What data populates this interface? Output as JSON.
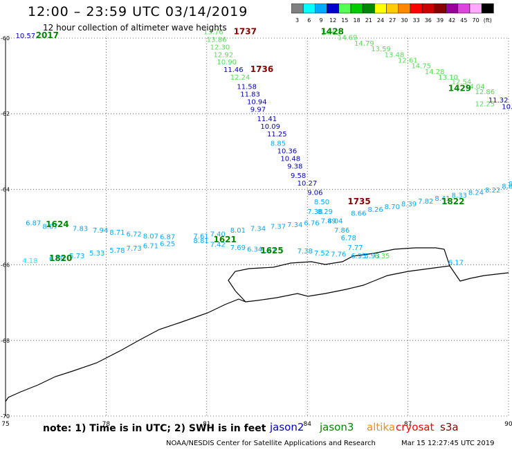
{
  "header": {
    "title": "12:00 – 23:59 UTC 03/14/2019",
    "subtitle": "12 hour collection of altimeter wave heights"
  },
  "color_scale": {
    "unit": "(ft)",
    "bins": [
      {
        "label": "3",
        "color": "#808080"
      },
      {
        "label": "6",
        "color": "#00ffff"
      },
      {
        "label": "9",
        "color": "#00aaff"
      },
      {
        "label": "12",
        "color": "#0000cc"
      },
      {
        "label": "15",
        "color": "#55ff55"
      },
      {
        "label": "18",
        "color": "#00cc00"
      },
      {
        "label": "21",
        "color": "#008800"
      },
      {
        "label": "24",
        "color": "#ffff00"
      },
      {
        "label": "27",
        "color": "#ffcc00"
      },
      {
        "label": "30",
        "color": "#ff8800"
      },
      {
        "label": "33",
        "color": "#ff0000"
      },
      {
        "label": "36",
        "color": "#cc0000"
      },
      {
        "label": "39",
        "color": "#880000"
      },
      {
        "label": "42",
        "color": "#990099"
      },
      {
        "label": "45",
        "color": "#dd44dd"
      },
      {
        "label": "70",
        "color": "#ffaaff"
      },
      {
        "label": "",
        "color": "#000000"
      }
    ]
  },
  "axes": {
    "lon_ticks": [
      "75",
      "78",
      "81",
      "84",
      "87",
      "90"
    ],
    "lat_ticks": [
      "-60",
      "-62",
      "-64",
      "-66",
      "-68",
      "-70"
    ]
  },
  "track_labels": [
    {
      "text": "2017",
      "color": "#008800",
      "lon": 75.9,
      "lat": -60.0
    },
    {
      "text": "1737",
      "color": "#880000",
      "lon": 81.8,
      "lat": -59.9
    },
    {
      "text": "1736",
      "color": "#880000",
      "lon": 82.3,
      "lat": -60.9
    },
    {
      "text": "1428",
      "color": "#008800",
      "lon": 84.4,
      "lat": -59.9
    },
    {
      "text": "1429",
      "color": "#008800",
      "lon": 88.2,
      "lat": -61.4
    },
    {
      "text": "1735",
      "color": "#880000",
      "lon": 85.2,
      "lat": -64.4
    },
    {
      "text": "1822",
      "color": "#008800",
      "lon": 88.0,
      "lat": -64.4
    },
    {
      "text": "1624",
      "color": "#008800",
      "lon": 76.2,
      "lat": -65.0
    },
    {
      "text": "1621",
      "color": "#008800",
      "lon": 81.2,
      "lat": -65.4
    },
    {
      "text": "1625",
      "color": "#008800",
      "lon": 82.6,
      "lat": -65.7
    },
    {
      "text": "1820",
      "color": "#008800",
      "lon": 76.3,
      "lat": -65.9
    }
  ],
  "swh_values": [
    {
      "v": "10.57",
      "c": "#0000cc",
      "lon": 75.3,
      "lat": -60.0
    },
    {
      "v": "13.76",
      "c": "#55dd55",
      "lon": 80.9,
      "lat": -59.9
    },
    {
      "v": "13.86",
      "c": "#55dd55",
      "lon": 81.0,
      "lat": -60.1
    },
    {
      "v": "12.30",
      "c": "#55dd55",
      "lon": 81.1,
      "lat": -60.3
    },
    {
      "v": "12.92",
      "c": "#55dd55",
      "lon": 81.2,
      "lat": -60.5
    },
    {
      "v": "10.90",
      "c": "#55dd55",
      "lon": 81.3,
      "lat": -60.7
    },
    {
      "v": "11.46",
      "c": "#0000cc",
      "lon": 81.5,
      "lat": -60.9
    },
    {
      "v": "12.24",
      "c": "#55dd55",
      "lon": 81.7,
      "lat": -61.1
    },
    {
      "v": "11.58",
      "c": "#0000cc",
      "lon": 81.9,
      "lat": -61.35
    },
    {
      "v": "11.83",
      "c": "#0000cc",
      "lon": 82.0,
      "lat": -61.55
    },
    {
      "v": "10.94",
      "c": "#0000cc",
      "lon": 82.2,
      "lat": -61.75
    },
    {
      "v": "9.97",
      "c": "#0000cc",
      "lon": 82.3,
      "lat": -61.95
    },
    {
      "v": "11.41",
      "c": "#0000cc",
      "lon": 82.5,
      "lat": -62.2
    },
    {
      "v": "10.09",
      "c": "#0000cc",
      "lon": 82.6,
      "lat": -62.4
    },
    {
      "v": "11.25",
      "c": "#0000cc",
      "lon": 82.8,
      "lat": -62.6
    },
    {
      "v": "8.85",
      "c": "#00aaff",
      "lon": 82.9,
      "lat": -62.85
    },
    {
      "v": "10.36",
      "c": "#0000cc",
      "lon": 83.1,
      "lat": -63.05
    },
    {
      "v": "10.48",
      "c": "#0000cc",
      "lon": 83.2,
      "lat": -63.25
    },
    {
      "v": "9.38",
      "c": "#0000cc",
      "lon": 83.4,
      "lat": -63.45
    },
    {
      "v": "9.58",
      "c": "#0000cc",
      "lon": 83.5,
      "lat": -63.7
    },
    {
      "v": "10.27",
      "c": "#0000cc",
      "lon": 83.7,
      "lat": -63.9
    },
    {
      "v": "9.06",
      "c": "#0000cc",
      "lon": 84.0,
      "lat": -64.15
    },
    {
      "v": "8.50",
      "c": "#00aaff",
      "lon": 84.2,
      "lat": -64.4
    },
    {
      "v": "7.38",
      "c": "#00aaff",
      "lon": 84.0,
      "lat": -64.65
    },
    {
      "v": "8.29",
      "c": "#00aaff",
      "lon": 84.3,
      "lat": -64.65
    },
    {
      "v": "8.04",
      "c": "#00aaff",
      "lon": 84.6,
      "lat": -64.9
    },
    {
      "v": "7.86",
      "c": "#00aaff",
      "lon": 84.8,
      "lat": -65.15
    },
    {
      "v": "6.78",
      "c": "#00aaff",
      "lon": 85.0,
      "lat": -65.35
    },
    {
      "v": "7.77",
      "c": "#00aaff",
      "lon": 85.2,
      "lat": -65.6
    },
    {
      "v": "6.95",
      "c": "#00aaff",
      "lon": 85.3,
      "lat": -65.82
    },
    {
      "v": "5.93",
      "c": "#00aaff",
      "lon": 85.7,
      "lat": -65.82
    },
    {
      "v": "6.35",
      "c": "#55dd55",
      "lon": 86.0,
      "lat": -65.82
    },
    {
      "v": "7.38",
      "c": "#00aaff",
      "lon": 83.7,
      "lat": -65.7
    },
    {
      "v": "7.52",
      "c": "#00aaff",
      "lon": 84.2,
      "lat": -65.75
    },
    {
      "v": "7.76",
      "c": "#00aaff",
      "lon": 84.7,
      "lat": -65.78
    },
    {
      "v": "8.66",
      "c": "#00aaff",
      "lon": 85.3,
      "lat": -64.7
    },
    {
      "v": "8.26",
      "c": "#00aaff",
      "lon": 85.8,
      "lat": -64.6
    },
    {
      "v": "8.70",
      "c": "#00aaff",
      "lon": 86.3,
      "lat": -64.52
    },
    {
      "v": "8.39",
      "c": "#00aaff",
      "lon": 86.8,
      "lat": -64.45
    },
    {
      "v": "7.82",
      "c": "#00aaff",
      "lon": 87.3,
      "lat": -64.38
    },
    {
      "v": "8.41",
      "c": "#00aaff",
      "lon": 87.8,
      "lat": -64.3
    },
    {
      "v": "8.33",
      "c": "#00aaff",
      "lon": 88.3,
      "lat": -64.22
    },
    {
      "v": "8.24",
      "c": "#00aaff",
      "lon": 88.8,
      "lat": -64.15
    },
    {
      "v": "8.22",
      "c": "#00aaff",
      "lon": 89.3,
      "lat": -64.08
    },
    {
      "v": "8.62",
      "c": "#00aaff",
      "lon": 89.8,
      "lat": -63.98
    },
    {
      "v": "9.5",
      "c": "#00aaff",
      "lon": 90.0,
      "lat": -63.92
    },
    {
      "v": "14.62",
      "c": "#55dd55",
      "lon": 84.4,
      "lat": -59.92
    },
    {
      "v": "14.69",
      "c": "#55dd55",
      "lon": 84.9,
      "lat": -60.05
    },
    {
      "v": "14.79",
      "c": "#55dd55",
      "lon": 85.4,
      "lat": -60.2
    },
    {
      "v": "13.59",
      "c": "#55dd55",
      "lon": 85.9,
      "lat": -60.35
    },
    {
      "v": "13.48",
      "c": "#55dd55",
      "lon": 86.3,
      "lat": -60.5
    },
    {
      "v": "12.61",
      "c": "#55dd55",
      "lon": 86.7,
      "lat": -60.65
    },
    {
      "v": "14.75",
      "c": "#55dd55",
      "lon": 87.1,
      "lat": -60.8
    },
    {
      "v": "14.28",
      "c": "#55dd55",
      "lon": 87.5,
      "lat": -60.95
    },
    {
      "v": "13.10",
      "c": "#55dd55",
      "lon": 87.9,
      "lat": -61.1
    },
    {
      "v": "12.54",
      "c": "#55dd55",
      "lon": 88.3,
      "lat": -61.22
    },
    {
      "v": "14.04",
      "c": "#55dd55",
      "lon": 88.7,
      "lat": -61.35
    },
    {
      "v": "12.86",
      "c": "#55dd55",
      "lon": 89.0,
      "lat": -61.48
    },
    {
      "v": "11.32",
      "c": "#0000cc",
      "lon": 89.4,
      "lat": -61.7
    },
    {
      "v": "12.25",
      "c": "#55dd55",
      "lon": 89.0,
      "lat": -61.8
    },
    {
      "v": "10.40",
      "c": "#0000cc",
      "lon": 89.8,
      "lat": -61.88
    },
    {
      "v": "10.72",
      "c": "#0000cc",
      "lon": 90.2,
      "lat": -61.95
    },
    {
      "v": "6.87",
      "c": "#00aaff",
      "lon": 75.6,
      "lat": -64.95
    },
    {
      "v": "8.07",
      "c": "#00aaff",
      "lon": 76.1,
      "lat": -65.05
    },
    {
      "v": "7.83",
      "c": "#00aaff",
      "lon": 77.0,
      "lat": -65.1
    },
    {
      "v": "7.94",
      "c": "#00aaff",
      "lon": 77.6,
      "lat": -65.15
    },
    {
      "v": "8.71",
      "c": "#00aaff",
      "lon": 78.1,
      "lat": -65.2
    },
    {
      "v": "6.72",
      "c": "#00aaff",
      "lon": 78.6,
      "lat": -65.25
    },
    {
      "v": "8.07",
      "c": "#00aaff",
      "lon": 79.1,
      "lat": -65.3
    },
    {
      "v": "6.87",
      "c": "#00aaff",
      "lon": 79.6,
      "lat": -65.32
    },
    {
      "v": "7.61",
      "c": "#00aaff",
      "lon": 80.6,
      "lat": -65.3
    },
    {
      "v": "7.40",
      "c": "#00aaff",
      "lon": 81.1,
      "lat": -65.25
    },
    {
      "v": "8.01",
      "c": "#00aaff",
      "lon": 81.7,
      "lat": -65.15
    },
    {
      "v": "7.34",
      "c": "#00aaff",
      "lon": 82.3,
      "lat": -65.1
    },
    {
      "v": "7.37",
      "c": "#00aaff",
      "lon": 82.9,
      "lat": -65.05
    },
    {
      "v": "7.34",
      "c": "#00aaff",
      "lon": 83.4,
      "lat": -65.0
    },
    {
      "v": "6.76",
      "c": "#00aaff",
      "lon": 83.9,
      "lat": -64.95
    },
    {
      "v": "7.49",
      "c": "#00aaff",
      "lon": 84.4,
      "lat": -64.9
    },
    {
      "v": "4.18",
      "c": "#00ffff",
      "lon": 75.5,
      "lat": -65.95
    },
    {
      "v": "6.69",
      "c": "#00aaff",
      "lon": 76.3,
      "lat": -65.9
    },
    {
      "v": "5.73",
      "c": "#00aaff",
      "lon": 76.9,
      "lat": -65.82
    },
    {
      "v": "5.33",
      "c": "#00aaff",
      "lon": 77.5,
      "lat": -65.75
    },
    {
      "v": "5.78",
      "c": "#00aaff",
      "lon": 78.1,
      "lat": -65.68
    },
    {
      "v": "7.73",
      "c": "#00aaff",
      "lon": 78.6,
      "lat": -65.62
    },
    {
      "v": "6.71",
      "c": "#00aaff",
      "lon": 79.1,
      "lat": -65.56
    },
    {
      "v": "6.25",
      "c": "#00aaff",
      "lon": 79.6,
      "lat": -65.5
    },
    {
      "v": "8.81",
      "c": "#00aaff",
      "lon": 80.6,
      "lat": -65.42
    },
    {
      "v": "7.42",
      "c": "#00aaff",
      "lon": 81.1,
      "lat": -65.52
    },
    {
      "v": "7.69",
      "c": "#00aaff",
      "lon": 81.7,
      "lat": -65.6
    },
    {
      "v": "6.34",
      "c": "#00aaff",
      "lon": 82.2,
      "lat": -65.65
    },
    {
      "v": "5.97",
      "c": "#00aaff",
      "lon": 82.6,
      "lat": -65.68
    },
    {
      "v": "6.17",
      "c": "#00aaff",
      "lon": 88.2,
      "lat": -66.0
    }
  ],
  "footer": {
    "note": "note:  1) Time is in UTC;  2) SWH is in feet",
    "satellites": [
      {
        "name": "jason2",
        "color": "#0000cc"
      },
      {
        "name": "jason3",
        "color": "#008800"
      },
      {
        "name": "altika",
        "color": "#ff8800"
      },
      {
        "name": "cryosat",
        "color": "#ff0000"
      },
      {
        "name": "s3a",
        "color": "#880000"
      }
    ],
    "credit": "NOAA/NESDIS Center for Satellite Applications and Research",
    "timestamp": "Mar 15 12:27:45 UTC 2019"
  }
}
